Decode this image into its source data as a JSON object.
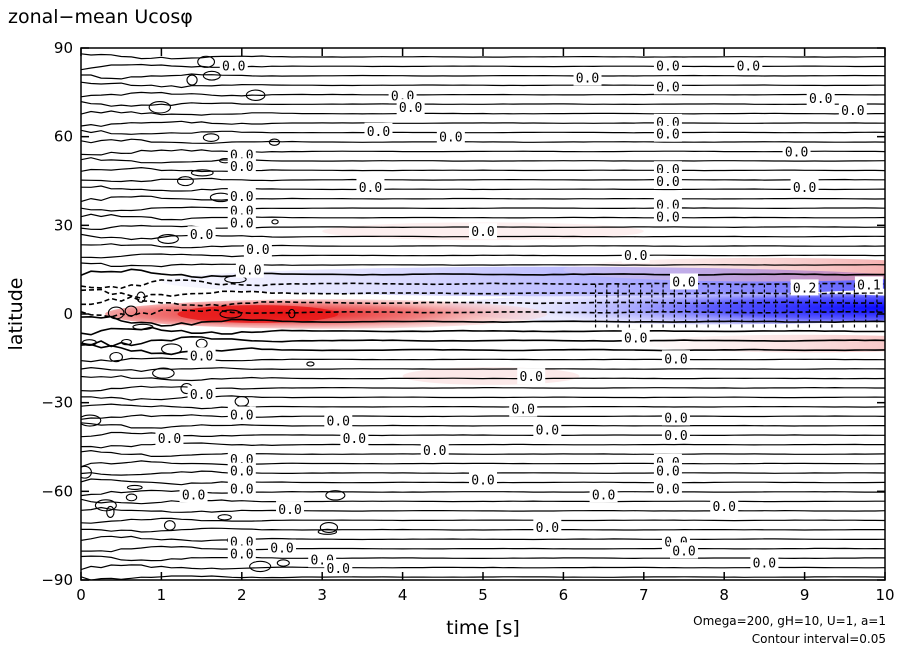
{
  "chart_data": {
    "type": "contour",
    "title": "zonal−mean  Ucosφ",
    "xlabel": "time [s]",
    "ylabel": "latitude",
    "xlim": [
      0,
      10
    ],
    "ylim": [
      -90,
      90
    ],
    "x_ticks": [
      0,
      1,
      2,
      3,
      4,
      5,
      6,
      7,
      8,
      9,
      10
    ],
    "y_ticks": [
      90,
      60,
      30,
      0,
      -30,
      -60,
      -90
    ],
    "y_tick_labels": [
      "90",
      "60",
      "30",
      "0",
      "−30",
      "−60",
      "−90"
    ],
    "contour_interval": 0.05,
    "positive_color": "#e02020",
    "negative_color": "#1a1aff",
    "features": [
      {
        "kind": "positive-jet",
        "t_start": 0.5,
        "t_end": 5.5,
        "lat_center": 0,
        "peak_time": 2.0
      },
      {
        "kind": "negative-band",
        "t_start": 1.0,
        "t_end": 10,
        "lat_center": 10,
        "peak_time": 10
      },
      {
        "kind": "negative-core",
        "t_start": 5.5,
        "t_end": 10,
        "lat_center": 0,
        "peak_time": 10
      },
      {
        "kind": "positive-band",
        "t_start": 6.5,
        "t_end": 10,
        "lat_center": 15
      },
      {
        "kind": "positive-band",
        "t_start": 7.5,
        "t_end": 10,
        "lat_center": -10
      }
    ],
    "contour_labels": [
      {
        "t": 1.9,
        "lat": 84,
        "text": "0.0"
      },
      {
        "t": 6.3,
        "lat": 80,
        "text": "0.0"
      },
      {
        "t": 7.3,
        "lat": 84,
        "text": "0.0"
      },
      {
        "t": 8.3,
        "lat": 84,
        "text": "0.0"
      },
      {
        "t": 7.3,
        "lat": 77,
        "text": "0.0"
      },
      {
        "t": 4.0,
        "lat": 74,
        "text": "0.0"
      },
      {
        "t": 4.1,
        "lat": 70,
        "text": "0.0"
      },
      {
        "t": 9.2,
        "lat": 73,
        "text": "0.0"
      },
      {
        "t": 9.6,
        "lat": 69,
        "text": "0.0"
      },
      {
        "t": 7.3,
        "lat": 65,
        "text": "0.0"
      },
      {
        "t": 7.3,
        "lat": 61,
        "text": "0.0"
      },
      {
        "t": 3.7,
        "lat": 62,
        "text": "0.0"
      },
      {
        "t": 4.6,
        "lat": 60,
        "text": "0.0"
      },
      {
        "t": 2.0,
        "lat": 54,
        "text": "0.0"
      },
      {
        "t": 2.0,
        "lat": 50,
        "text": "0.0"
      },
      {
        "t": 8.9,
        "lat": 55,
        "text": "0.0"
      },
      {
        "t": 7.3,
        "lat": 49,
        "text": "0.0"
      },
      {
        "t": 7.3,
        "lat": 45,
        "text": "0.0"
      },
      {
        "t": 3.6,
        "lat": 43,
        "text": "0.0"
      },
      {
        "t": 2.0,
        "lat": 40,
        "text": "0.0"
      },
      {
        "t": 2.0,
        "lat": 35,
        "text": "0.0"
      },
      {
        "t": 2.0,
        "lat": 31,
        "text": "0.0"
      },
      {
        "t": 9.0,
        "lat": 43,
        "text": "0.0"
      },
      {
        "t": 7.3,
        "lat": 37,
        "text": "0.0"
      },
      {
        "t": 7.3,
        "lat": 33,
        "text": "0.0"
      },
      {
        "t": 1.5,
        "lat": 27,
        "text": "0.0"
      },
      {
        "t": 5.0,
        "lat": 28,
        "text": "0.0"
      },
      {
        "t": 2.2,
        "lat": 22,
        "text": "0.0"
      },
      {
        "t": 6.9,
        "lat": 20,
        "text": "0.0"
      },
      {
        "t": 2.1,
        "lat": 15,
        "text": "0.0"
      },
      {
        "t": 7.5,
        "lat": 11,
        "text": "0.0"
      },
      {
        "t": 9.0,
        "lat": 9,
        "text": "0.2"
      },
      {
        "t": 9.8,
        "lat": 10,
        "text": "0.1"
      },
      {
        "t": 1.5,
        "lat": -14,
        "text": "0.0"
      },
      {
        "t": 6.9,
        "lat": -8,
        "text": "0.0"
      },
      {
        "t": 7.4,
        "lat": -15,
        "text": "0.0"
      },
      {
        "t": 5.6,
        "lat": -21,
        "text": "0.0"
      },
      {
        "t": 1.5,
        "lat": -27,
        "text": "0.0"
      },
      {
        "t": 5.5,
        "lat": -32,
        "text": "0.0"
      },
      {
        "t": 2.0,
        "lat": -34,
        "text": "0.0"
      },
      {
        "t": 3.2,
        "lat": -36,
        "text": "0.0"
      },
      {
        "t": 7.4,
        "lat": -35,
        "text": "0.0"
      },
      {
        "t": 5.8,
        "lat": -39,
        "text": "0.0"
      },
      {
        "t": 1.1,
        "lat": -42,
        "text": "0.0"
      },
      {
        "t": 3.4,
        "lat": -42,
        "text": "0.0"
      },
      {
        "t": 7.4,
        "lat": -41,
        "text": "0.0"
      },
      {
        "t": 4.4,
        "lat": -46,
        "text": "0.0"
      },
      {
        "t": 2.0,
        "lat": -49,
        "text": "0.0"
      },
      {
        "t": 7.3,
        "lat": -50,
        "text": "0.0"
      },
      {
        "t": 2.0,
        "lat": -53,
        "text": "0.0"
      },
      {
        "t": 7.3,
        "lat": -53,
        "text": "0.0"
      },
      {
        "t": 5.0,
        "lat": -56,
        "text": "0.0"
      },
      {
        "t": 2.0,
        "lat": -59,
        "text": "0.0"
      },
      {
        "t": 1.4,
        "lat": -61,
        "text": "0.0"
      },
      {
        "t": 6.5,
        "lat": -61,
        "text": "0.0"
      },
      {
        "t": 7.3,
        "lat": -59,
        "text": "0.0"
      },
      {
        "t": 2.6,
        "lat": -66,
        "text": "0.0"
      },
      {
        "t": 8.0,
        "lat": -65,
        "text": "0.0"
      },
      {
        "t": 5.8,
        "lat": -72,
        "text": "0.0"
      },
      {
        "t": 2.0,
        "lat": -77,
        "text": "0.0"
      },
      {
        "t": 7.4,
        "lat": -77,
        "text": "0.0"
      },
      {
        "t": 2.0,
        "lat": -81,
        "text": "0.0"
      },
      {
        "t": 2.5,
        "lat": -79,
        "text": "0.0"
      },
      {
        "t": 7.5,
        "lat": -80,
        "text": "0.0"
      },
      {
        "t": 3.0,
        "lat": -83,
        "text": "0.0"
      },
      {
        "t": 3.2,
        "lat": -86,
        "text": "0.0"
      },
      {
        "t": 8.5,
        "lat": -84,
        "text": "0.0"
      }
    ]
  },
  "annotations": {
    "params": "Omega=200, gH=10, U=1, a=1",
    "interval": "Contour interval=0.05"
  }
}
